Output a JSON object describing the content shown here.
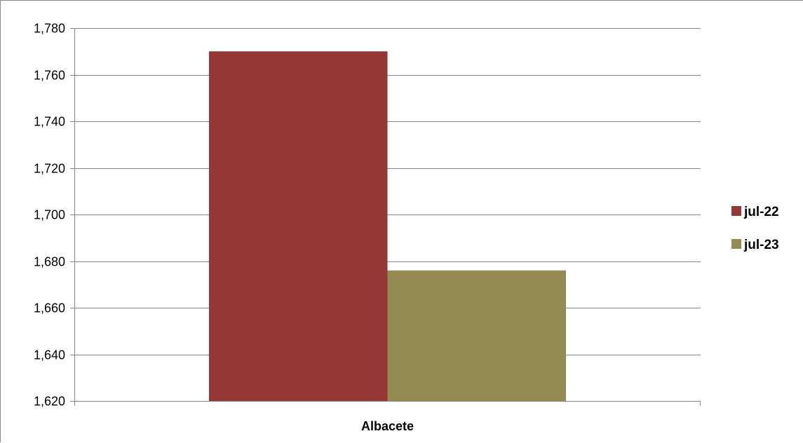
{
  "chart_data": {
    "type": "bar",
    "categories": [
      "Albacete"
    ],
    "series": [
      {
        "name": "jul-22",
        "values": [
          1770
        ],
        "color": "#953735"
      },
      {
        "name": "jul-23",
        "values": [
          1676
        ],
        "color": "#948A54"
      }
    ],
    "ylim": [
      1620,
      1780
    ],
    "yticks": [
      1620,
      1640,
      1660,
      1680,
      1700,
      1720,
      1740,
      1760,
      1780
    ],
    "ytick_labels": [
      "1,620",
      "1,640",
      "1,660",
      "1,680",
      "1,700",
      "1,720",
      "1,740",
      "1,760",
      "1,780"
    ],
    "grid": true,
    "legend_position": "right",
    "gridline_color": "#878787",
    "axis_color": "#878787"
  }
}
